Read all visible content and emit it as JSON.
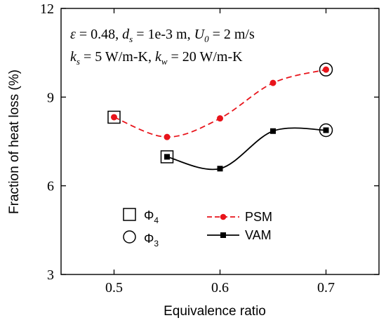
{
  "chart_data": {
    "type": "line",
    "xlabel": "Equivalence ratio",
    "ylabel": "Fraction of heat loss (%)",
    "xlim": [
      0.45,
      0.75
    ],
    "ylim": [
      3,
      12
    ],
    "xticks": [
      "0.5",
      "0.6",
      "0.7"
    ],
    "yticks": [
      "3",
      "6",
      "9",
      "12"
    ],
    "grid": false,
    "annotation": {
      "line1": "ε = 0.48, d_s = 1e-3 m, U_0 = 2 m/s",
      "line2": "k_s = 5 W/m-K, k_w = 20 W/m-K"
    },
    "series": [
      {
        "name": "PSM",
        "color": "#e8141b",
        "line_style": "dashed",
        "marker": "circle",
        "x": [
          0.5,
          0.55,
          0.6,
          0.65,
          0.7
        ],
        "y": [
          8.32,
          7.65,
          8.28,
          9.48,
          9.93
        ]
      },
      {
        "name": "VAM",
        "color": "#000000",
        "line_style": "solid",
        "marker": "square",
        "x": [
          0.55,
          0.6,
          0.65,
          0.7
        ],
        "y": [
          6.98,
          6.58,
          7.85,
          7.88
        ]
      }
    ],
    "highlight_markers": [
      {
        "symbol": "Φ",
        "subscript": "4",
        "shape": "open-square",
        "points": [
          [
            0.5,
            8.32
          ],
          [
            0.55,
            6.98
          ]
        ]
      },
      {
        "symbol": "Φ",
        "subscript": "3",
        "shape": "open-circle",
        "points": [
          [
            0.7,
            9.93
          ],
          [
            0.7,
            7.88
          ]
        ]
      }
    ],
    "legend": {
      "placement": "lower-left",
      "entries": [
        "Φ_4",
        "Φ_3",
        "PSM",
        "VAM"
      ]
    }
  }
}
